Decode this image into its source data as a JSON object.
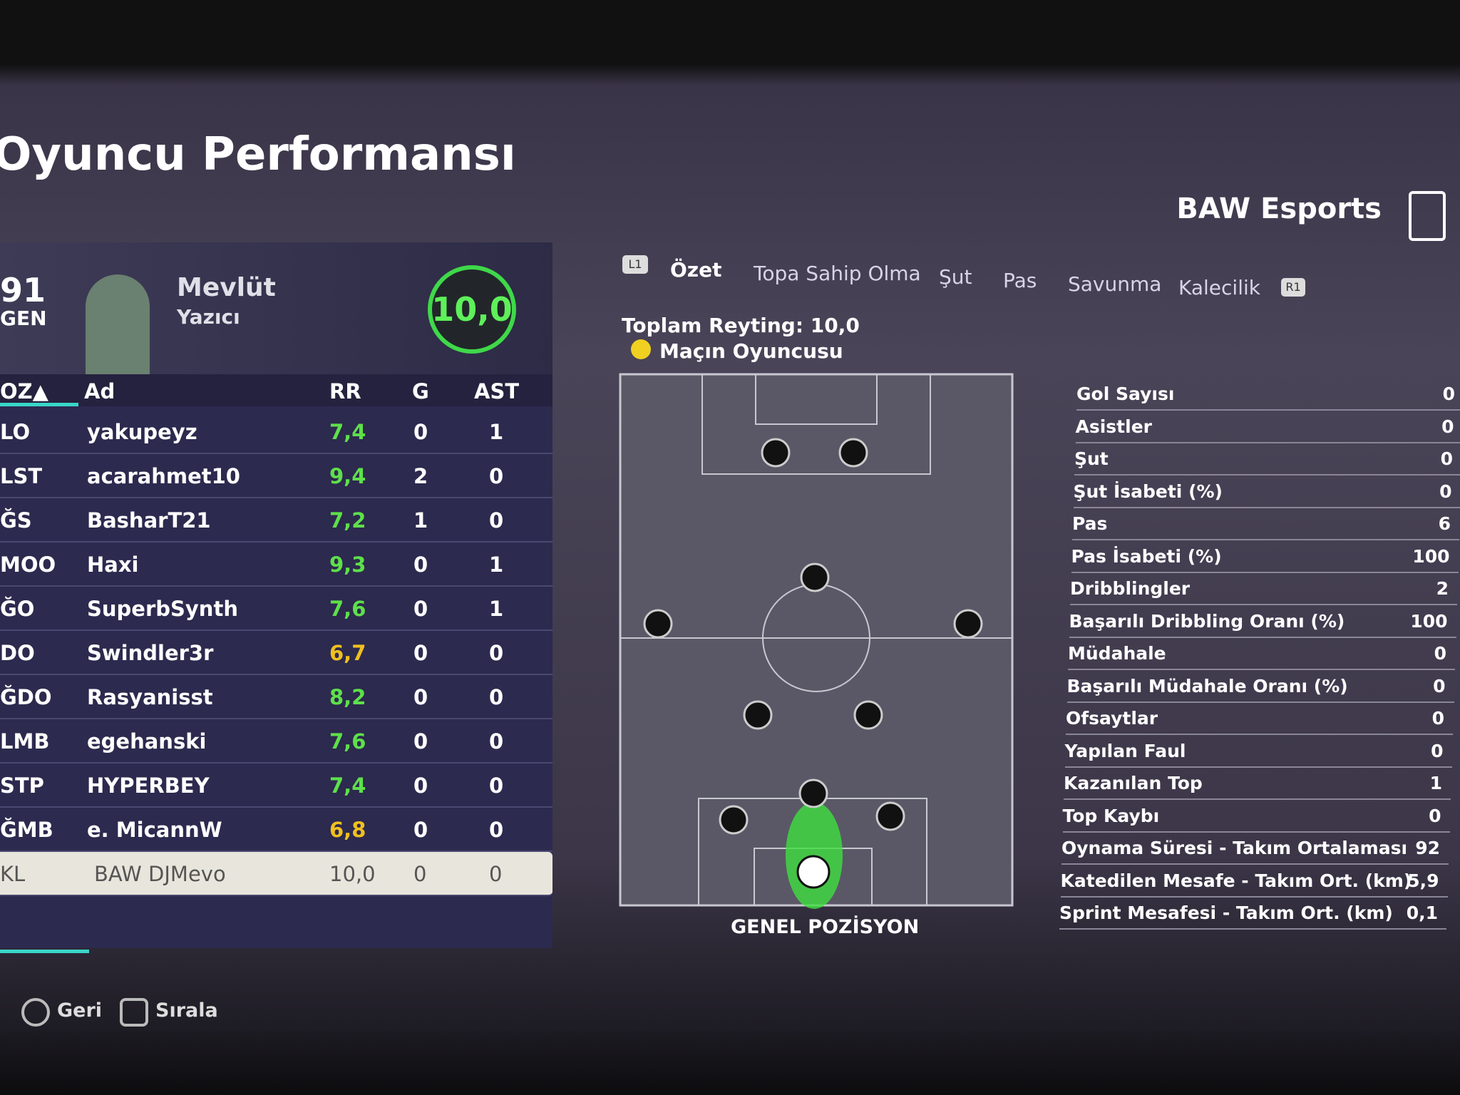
{
  "header": {
    "title": "Oyuncu Performansı",
    "team": "BAW Esports"
  },
  "player_card": {
    "overall": "91",
    "overall_label": "GEN",
    "first_name": "Mevlüt",
    "last_name": "Yazıcı",
    "match_rating": "10,0"
  },
  "table": {
    "columns": [
      "OZ▲",
      "Ad",
      "RR",
      "G",
      "AST"
    ],
    "rows": [
      {
        "pos": "LO",
        "name": "yakupeyz",
        "rr": "7,4",
        "g": "0",
        "ast": "1",
        "rr_color": "#5ee04a"
      },
      {
        "pos": "LST",
        "name": "acarahmet10",
        "rr": "9,4",
        "g": "2",
        "ast": "0",
        "rr_color": "#5ee04a"
      },
      {
        "pos": "ĞS",
        "name": "BasharT21",
        "rr": "7,2",
        "g": "1",
        "ast": "0",
        "rr_color": "#5ee04a"
      },
      {
        "pos": "MOO",
        "name": "Haxi",
        "rr": "9,3",
        "g": "0",
        "ast": "1",
        "rr_color": "#5ee04a"
      },
      {
        "pos": "ĞO",
        "name": "SuperbSynth",
        "rr": "7,6",
        "g": "0",
        "ast": "1",
        "rr_color": "#5ee04a"
      },
      {
        "pos": "DO",
        "name": "Swindler3r",
        "rr": "6,7",
        "g": "0",
        "ast": "0",
        "rr_color": "#f0c020"
      },
      {
        "pos": "ĞDO",
        "name": "Rasyanisst",
        "rr": "8,2",
        "g": "0",
        "ast": "0",
        "rr_color": "#5ee04a"
      },
      {
        "pos": "LMB",
        "name": "egehanski",
        "rr": "7,6",
        "g": "0",
        "ast": "0",
        "rr_color": "#5ee04a"
      },
      {
        "pos": "STP",
        "name": "HYPERBEY",
        "rr": "7,4",
        "g": "0",
        "ast": "0",
        "rr_color": "#5ee04a"
      },
      {
        "pos": "ĞMB",
        "name": "e. MicannW",
        "rr": "6,8",
        "g": "0",
        "ast": "0",
        "rr_color": "#f0c020"
      },
      {
        "pos": "KL",
        "name": "BAW DJMevo",
        "rr": "10,0",
        "g": "0",
        "ast": "0",
        "rr_color": "#555",
        "highlight": true
      }
    ]
  },
  "tabs": {
    "left_button": "L1",
    "right_button": "R1",
    "items": [
      "Özet",
      "Topa Sahip Olma",
      "Şut",
      "Pas",
      "Savunma",
      "Kalecilik"
    ]
  },
  "summary": {
    "total_rating": "Toplam Reyting: 10,0",
    "award": "Maçın Oyuncusu"
  },
  "pitch": {
    "label": "GENEL POZİSYON"
  },
  "stats": [
    {
      "label": "Gol Sayısı",
      "value": "0"
    },
    {
      "label": "Asistler",
      "value": "0"
    },
    {
      "label": "Şut",
      "value": "0"
    },
    {
      "label": "Şut İsabeti (%)",
      "value": "0"
    },
    {
      "label": "Pas",
      "value": "6"
    },
    {
      "label": "Pas İsabeti (%)",
      "value": "100"
    },
    {
      "label": "Dribblingler",
      "value": "2"
    },
    {
      "label": "Başarılı Dribbling Oranı (%)",
      "value": "100"
    },
    {
      "label": "Müdahale",
      "value": "0"
    },
    {
      "label": "Başarılı Müdahale Oranı (%)",
      "value": "0"
    },
    {
      "label": "Ofsaytlar",
      "value": "0"
    },
    {
      "label": "Yapılan Faul",
      "value": "0"
    },
    {
      "label": "Kazanılan Top",
      "value": "1"
    },
    {
      "label": "Top Kaybı",
      "value": "0"
    },
    {
      "label": "Oynama Süresi - Takım Ortalaması",
      "value": "92"
    },
    {
      "label": "Katedilen Mesafe - Takım Ort. (km)",
      "value": "5,9"
    },
    {
      "label": "Sprint Mesafesi - Takım Ort. (km)",
      "value": "0,1"
    }
  ],
  "footer": {
    "back": "Geri",
    "sort": "Sırala"
  }
}
